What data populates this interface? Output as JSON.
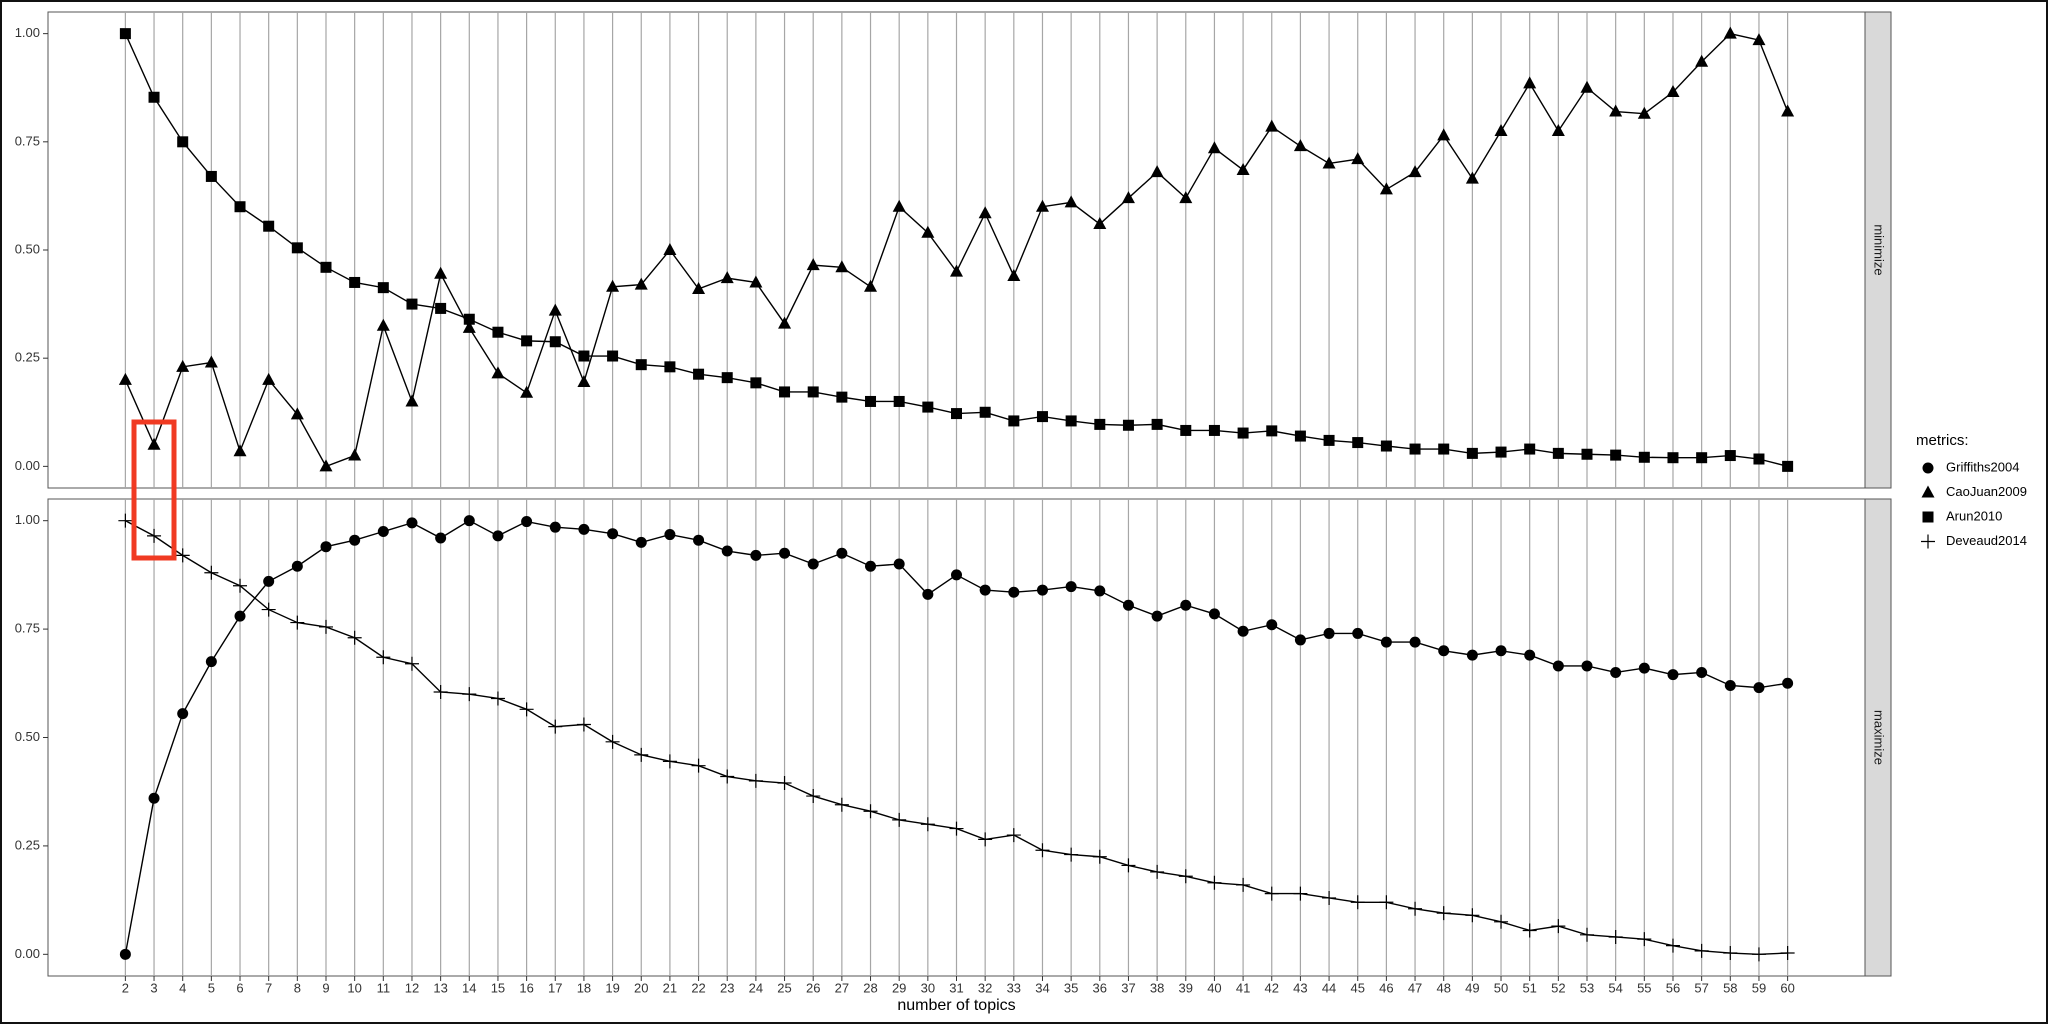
{
  "chart_data": [
    {
      "type": "line",
      "strip_label": "minimize",
      "grid": "x",
      "x": [
        2,
        3,
        4,
        5,
        6,
        7,
        8,
        9,
        10,
        11,
        12,
        13,
        14,
        15,
        16,
        17,
        18,
        19,
        20,
        21,
        22,
        23,
        24,
        25,
        26,
        27,
        28,
        29,
        30,
        31,
        32,
        33,
        34,
        35,
        36,
        37,
        38,
        39,
        40,
        41,
        42,
        43,
        44,
        45,
        46,
        47,
        48,
        49,
        50,
        51,
        52,
        53,
        54,
        55,
        56,
        57,
        58,
        59,
        60
      ],
      "xlim": [
        -0.7,
        62.7
      ],
      "ylim": [
        -0.05,
        1.05
      ],
      "yticks": [
        {
          "value": 0,
          "label": "0.00"
        },
        {
          "value": 0.25,
          "label": "0.25"
        },
        {
          "value": 0.5,
          "label": "0.50"
        },
        {
          "value": 0.75,
          "label": "0.75"
        },
        {
          "value": 1,
          "label": "1.00"
        }
      ],
      "series": [
        {
          "name": "CaoJuan2009",
          "marker": "triangle",
          "color": "#000000",
          "values": [
            0.2,
            0.05,
            0.23,
            0.24,
            0.035,
            0.2,
            0.12,
            0.0,
            0.025,
            0.325,
            0.15,
            0.445,
            0.32,
            0.215,
            0.17,
            0.36,
            0.195,
            0.415,
            0.42,
            0.5,
            0.41,
            0.435,
            0.425,
            0.33,
            0.465,
            0.46,
            0.415,
            0.6,
            0.54,
            0.45,
            0.585,
            0.44,
            0.6,
            0.61,
            0.56,
            0.62,
            0.68,
            0.62,
            0.735,
            0.685,
            0.785,
            0.74,
            0.7,
            0.71,
            0.64,
            0.68,
            0.765,
            0.665,
            0.775,
            0.885,
            0.775,
            0.875,
            0.82,
            0.815,
            0.865,
            0.935,
            1.0,
            0.985,
            0.82
          ]
        },
        {
          "name": "Arun2010",
          "marker": "square",
          "color": "#000000",
          "values": [
            1.0,
            0.853,
            0.75,
            0.67,
            0.6,
            0.555,
            0.505,
            0.46,
            0.425,
            0.413,
            0.375,
            0.365,
            0.34,
            0.31,
            0.29,
            0.288,
            0.255,
            0.255,
            0.235,
            0.23,
            0.213,
            0.205,
            0.193,
            0.172,
            0.172,
            0.16,
            0.15,
            0.15,
            0.137,
            0.122,
            0.125,
            0.105,
            0.115,
            0.105,
            0.097,
            0.095,
            0.097,
            0.083,
            0.083,
            0.077,
            0.082,
            0.07,
            0.06,
            0.055,
            0.047,
            0.04,
            0.04,
            0.03,
            0.033,
            0.04,
            0.03,
            0.028,
            0.026,
            0.021,
            0.02,
            0.02,
            0.025,
            0.017,
            0.0
          ]
        }
      ]
    },
    {
      "type": "line",
      "strip_label": "maximize",
      "grid": "x",
      "x_label": "number of topics",
      "x": [
        2,
        3,
        4,
        5,
        6,
        7,
        8,
        9,
        10,
        11,
        12,
        13,
        14,
        15,
        16,
        17,
        18,
        19,
        20,
        21,
        22,
        23,
        24,
        25,
        26,
        27,
        28,
        29,
        30,
        31,
        32,
        33,
        34,
        35,
        36,
        37,
        38,
        39,
        40,
        41,
        42,
        43,
        44,
        45,
        46,
        47,
        48,
        49,
        50,
        51,
        52,
        53,
        54,
        55,
        56,
        57,
        58,
        59,
        60
      ],
      "xlim": [
        -0.7,
        62.7
      ],
      "xticks": [
        2,
        3,
        4,
        5,
        6,
        7,
        8,
        9,
        10,
        11,
        12,
        13,
        14,
        15,
        16,
        17,
        18,
        19,
        20,
        21,
        22,
        23,
        24,
        25,
        26,
        27,
        28,
        29,
        30,
        31,
        32,
        33,
        34,
        35,
        36,
        37,
        38,
        39,
        40,
        41,
        42,
        43,
        44,
        45,
        46,
        47,
        48,
        49,
        50,
        51,
        52,
        53,
        54,
        55,
        56,
        57,
        58,
        59,
        60
      ],
      "ylim": [
        -0.05,
        1.05
      ],
      "yticks": [
        {
          "value": 0,
          "label": "0.00"
        },
        {
          "value": 0.25,
          "label": "0.25"
        },
        {
          "value": 0.5,
          "label": "0.50"
        },
        {
          "value": 0.75,
          "label": "0.75"
        },
        {
          "value": 1,
          "label": "1.00"
        }
      ],
      "series": [
        {
          "name": "Griffiths2004",
          "marker": "circle",
          "color": "#000000",
          "values": [
            0.0,
            0.36,
            0.555,
            0.675,
            0.78,
            0.86,
            0.895,
            0.94,
            0.955,
            0.975,
            0.995,
            0.96,
            1.0,
            0.965,
            0.998,
            0.985,
            0.98,
            0.97,
            0.95,
            0.968,
            0.955,
            0.93,
            0.92,
            0.925,
            0.9,
            0.925,
            0.895,
            0.9,
            0.83,
            0.875,
            0.84,
            0.835,
            0.84,
            0.848,
            0.838,
            0.805,
            0.78,
            0.805,
            0.785,
            0.745,
            0.76,
            0.725,
            0.74,
            0.74,
            0.72,
            0.72,
            0.7,
            0.69,
            0.7,
            0.69,
            0.665,
            0.665,
            0.65,
            0.66,
            0.645,
            0.65,
            0.62,
            0.615,
            0.625
          ]
        },
        {
          "name": "Deveaud2014",
          "marker": "plus",
          "color": "#000000",
          "values": [
            1.0,
            0.965,
            0.92,
            0.88,
            0.85,
            0.795,
            0.765,
            0.755,
            0.73,
            0.685,
            0.67,
            0.605,
            0.6,
            0.59,
            0.565,
            0.525,
            0.53,
            0.49,
            0.46,
            0.445,
            0.435,
            0.41,
            0.4,
            0.395,
            0.365,
            0.345,
            0.33,
            0.31,
            0.3,
            0.29,
            0.265,
            0.275,
            0.24,
            0.23,
            0.225,
            0.205,
            0.19,
            0.18,
            0.165,
            0.16,
            0.14,
            0.14,
            0.13,
            0.12,
            0.12,
            0.105,
            0.095,
            0.09,
            0.075,
            0.055,
            0.065,
            0.045,
            0.04,
            0.035,
            0.02,
            0.008,
            0.003,
            0.0,
            0.003
          ]
        }
      ]
    }
  ],
  "legend": {
    "title": "metrics:"
  }
}
